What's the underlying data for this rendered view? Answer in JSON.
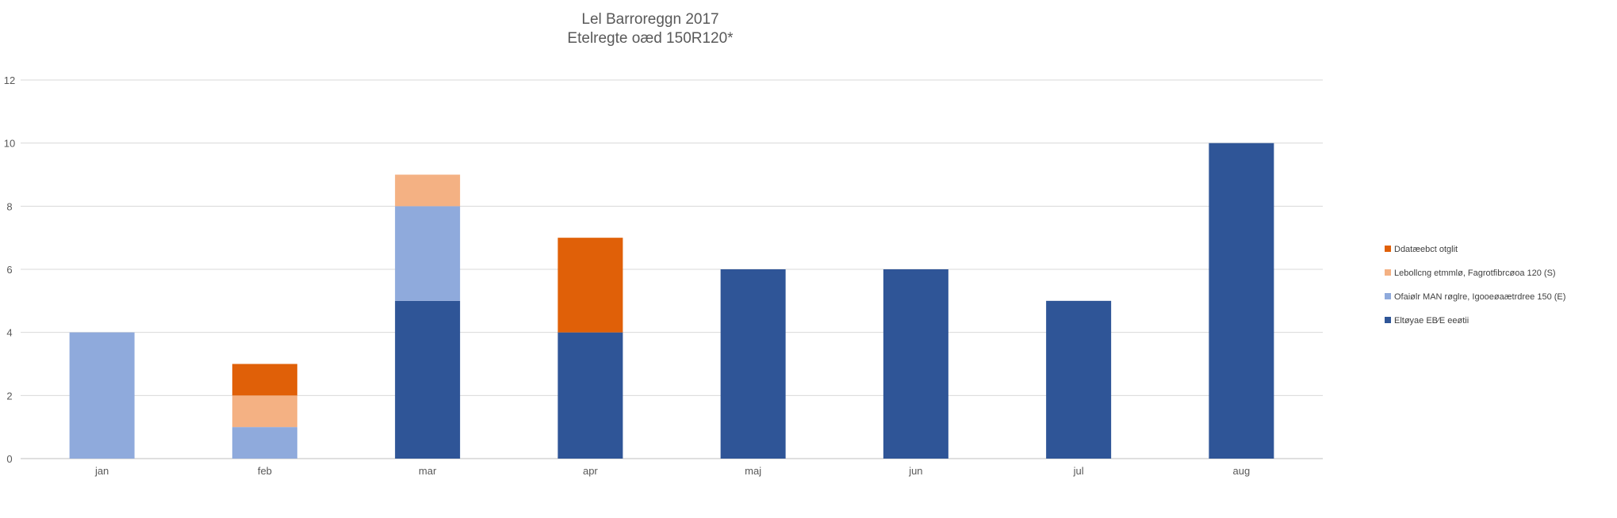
{
  "chart_data": {
    "type": "bar",
    "stacked": true,
    "title": "Lel Barroreggn 2017",
    "subtitle": "Etelregte oæd 150R120*",
    "xlabel": "",
    "ylabel": "",
    "ylim": [
      0,
      12
    ],
    "yticks": [
      0,
      2,
      4,
      6,
      8,
      10,
      12
    ],
    "grid": true,
    "legend_position": "right",
    "categories": [
      "jan",
      "feb",
      "mar",
      "apr",
      "maj",
      "jun",
      "jul",
      "aug"
    ],
    "series": [
      {
        "name": "Eltøyae EB⁄E eeøtii",
        "color": "#2F5597",
        "values": [
          0,
          0,
          5,
          4,
          6,
          6,
          5,
          10
        ]
      },
      {
        "name": "Ofaiølr MAN røglre, Igooeøaætrdree 150 (E)",
        "color": "#8FAADC",
        "values": [
          4,
          1,
          3,
          0,
          0,
          0,
          0,
          0
        ]
      },
      {
        "name": "Lebollcng etmmlø, Fagrotfibrcøoa 120 (S)",
        "color": "#F4B183",
        "values": [
          0,
          1,
          1,
          0,
          0,
          0,
          0,
          0
        ]
      },
      {
        "name": "Ddatæebct otglit",
        "color": "#E06008",
        "values": [
          0,
          1,
          0,
          3,
          0,
          0,
          0,
          0
        ]
      }
    ],
    "legend_order": [
      3,
      2,
      1,
      0
    ]
  }
}
